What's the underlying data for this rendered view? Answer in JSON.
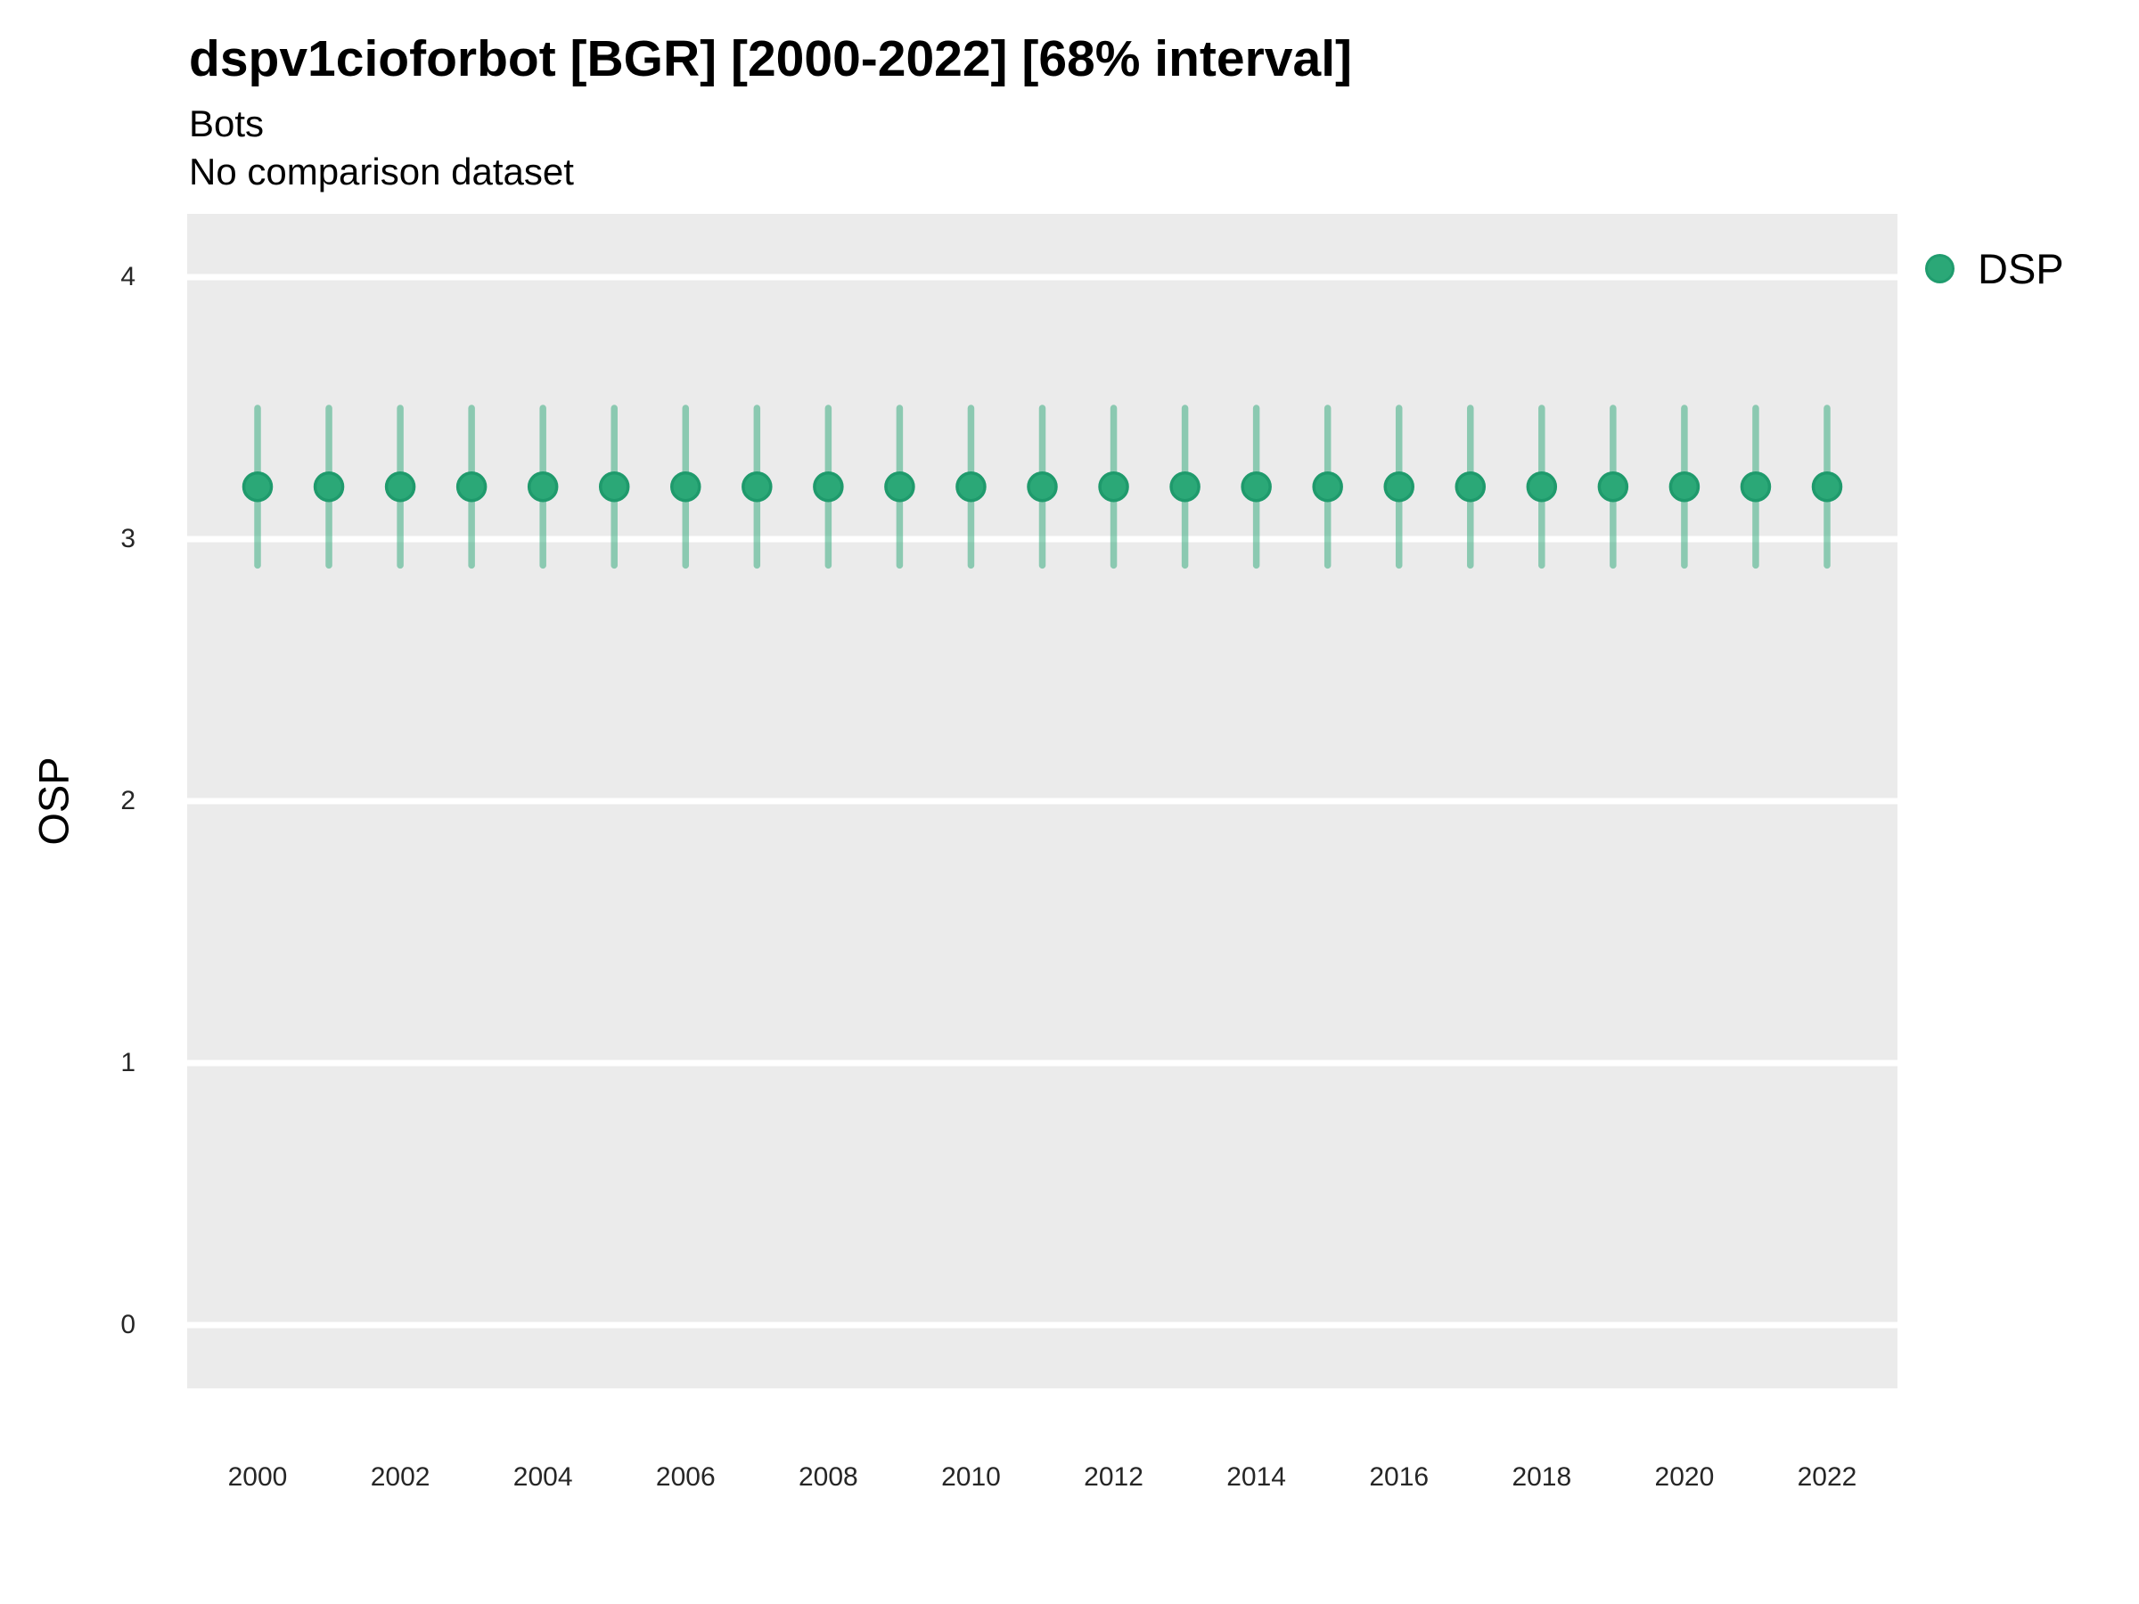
{
  "header": {
    "title": "dspv1cioforbot [BGR] [2000-2022] [68% interval]",
    "subtitle": "Bots",
    "comparison_note": "No comparison dataset"
  },
  "legend": {
    "position": "right-top",
    "items": [
      {
        "label": "DSP",
        "color": "#2ba877",
        "marker": "circle"
      }
    ]
  },
  "chart_data": {
    "type": "scatter",
    "title": "dspv1cioforbot [BGR] [2000-2022] [68% interval]",
    "subtitle": "Bots",
    "note": "No comparison dataset",
    "xlabel": "",
    "ylabel": "OSP",
    "interval_label": "68% interval",
    "x": [
      2000,
      2001,
      2002,
      2003,
      2004,
      2005,
      2006,
      2007,
      2008,
      2009,
      2010,
      2011,
      2012,
      2013,
      2014,
      2015,
      2016,
      2017,
      2018,
      2019,
      2020,
      2021,
      2022
    ],
    "series": [
      {
        "name": "DSP",
        "values": [
          3.2,
          3.2,
          3.2,
          3.2,
          3.2,
          3.2,
          3.2,
          3.2,
          3.2,
          3.2,
          3.2,
          3.2,
          3.2,
          3.2,
          3.2,
          3.2,
          3.2,
          3.2,
          3.2,
          3.2,
          3.2,
          3.2,
          3.2
        ],
        "interval_low": [
          2.9,
          2.9,
          2.9,
          2.9,
          2.9,
          2.9,
          2.9,
          2.9,
          2.9,
          2.9,
          2.9,
          2.9,
          2.9,
          2.9,
          2.9,
          2.9,
          2.9,
          2.9,
          2.9,
          2.9,
          2.9,
          2.9,
          2.9
        ],
        "interval_high": [
          3.5,
          3.5,
          3.5,
          3.5,
          3.5,
          3.5,
          3.5,
          3.5,
          3.5,
          3.5,
          3.5,
          3.5,
          3.5,
          3.5,
          3.5,
          3.5,
          3.5,
          3.5,
          3.5,
          3.5,
          3.5,
          3.5,
          3.5
        ]
      }
    ],
    "ylim": [
      0,
      4
    ],
    "yticks": [
      0,
      1,
      2,
      3,
      4
    ],
    "xticks": [
      2000,
      2002,
      2004,
      2006,
      2008,
      2010,
      2012,
      2014,
      2016,
      2018,
      2020,
      2022
    ],
    "grid": "major-only",
    "grid_color": "#ffffff",
    "panel_bg": "#ebebeb",
    "point_color": "#2ba877",
    "point_stroke": "#1f9a6c",
    "errorbar_color": "rgba(43,168,119,0.5)",
    "legend_position": "right-top"
  }
}
